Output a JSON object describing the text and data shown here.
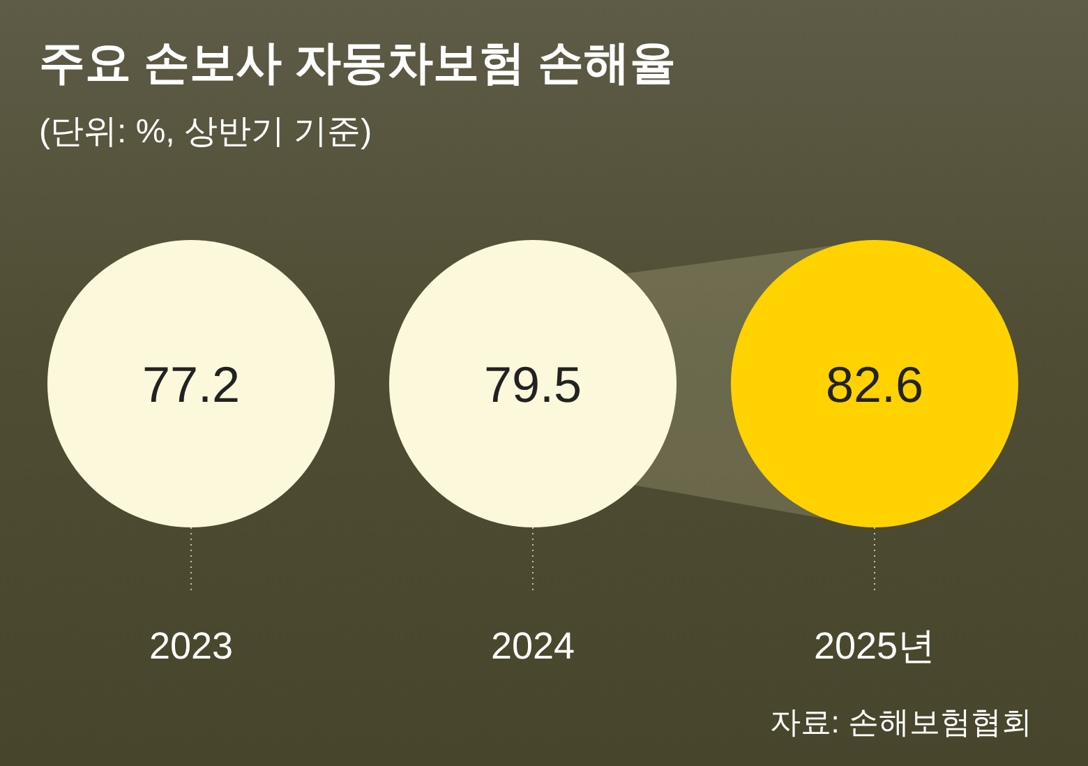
{
  "chart_data": {
    "type": "other",
    "title": "주요 손보사 자동차보험 손해율",
    "subtitle": "(단위: %, 상반기 기준)",
    "categories": [
      "2023",
      "2024",
      "2025년"
    ],
    "values": [
      77.2,
      79.5,
      82.6
    ],
    "colors": [
      "#fbf8dc",
      "#fbf8dc",
      "#ffd200"
    ],
    "data_labels": true,
    "annotations": [
      "자료: 손해보험협회"
    ]
  }
}
